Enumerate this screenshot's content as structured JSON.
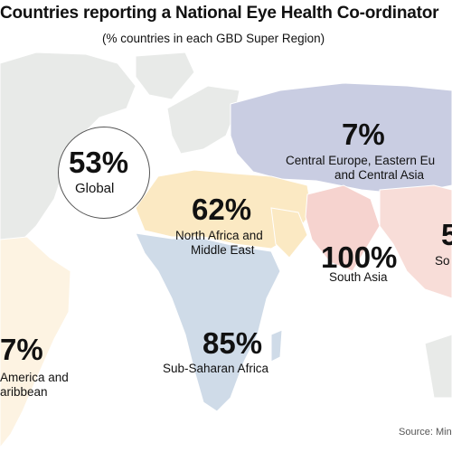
{
  "title": "Countries reporting a National Eye Health Co-ordinator",
  "subtitle": "(% countries in each GBD Super Region)",
  "global": {
    "value": "53%",
    "label": "Global"
  },
  "regions": [
    {
      "value": "7%",
      "label_line1": "Central Europe, Eastern Eu",
      "label_line2": "and Central Asia",
      "color": "#c9cde2"
    },
    {
      "value": "62%",
      "label_line1": "North Africa and",
      "label_line2": "Middle East",
      "color": "#fbe9c3"
    },
    {
      "value": "100%",
      "label_line1": "South Asia",
      "label_line2": "",
      "color": "#f6d3cf"
    },
    {
      "value": "5",
      "label_line1": "So",
      "label_line2": "",
      "color": "#f8ddd8"
    },
    {
      "value": "85%",
      "label_line1": "Sub-Saharan Africa",
      "label_line2": "",
      "color": "#cfdbe8"
    },
    {
      "value": "7%",
      "label_line1": " America and",
      "label_line2": "aribbean",
      "color": "#fdf3e2"
    }
  ],
  "high_income_color": "#e8eae8",
  "source": "Source: Min"
}
